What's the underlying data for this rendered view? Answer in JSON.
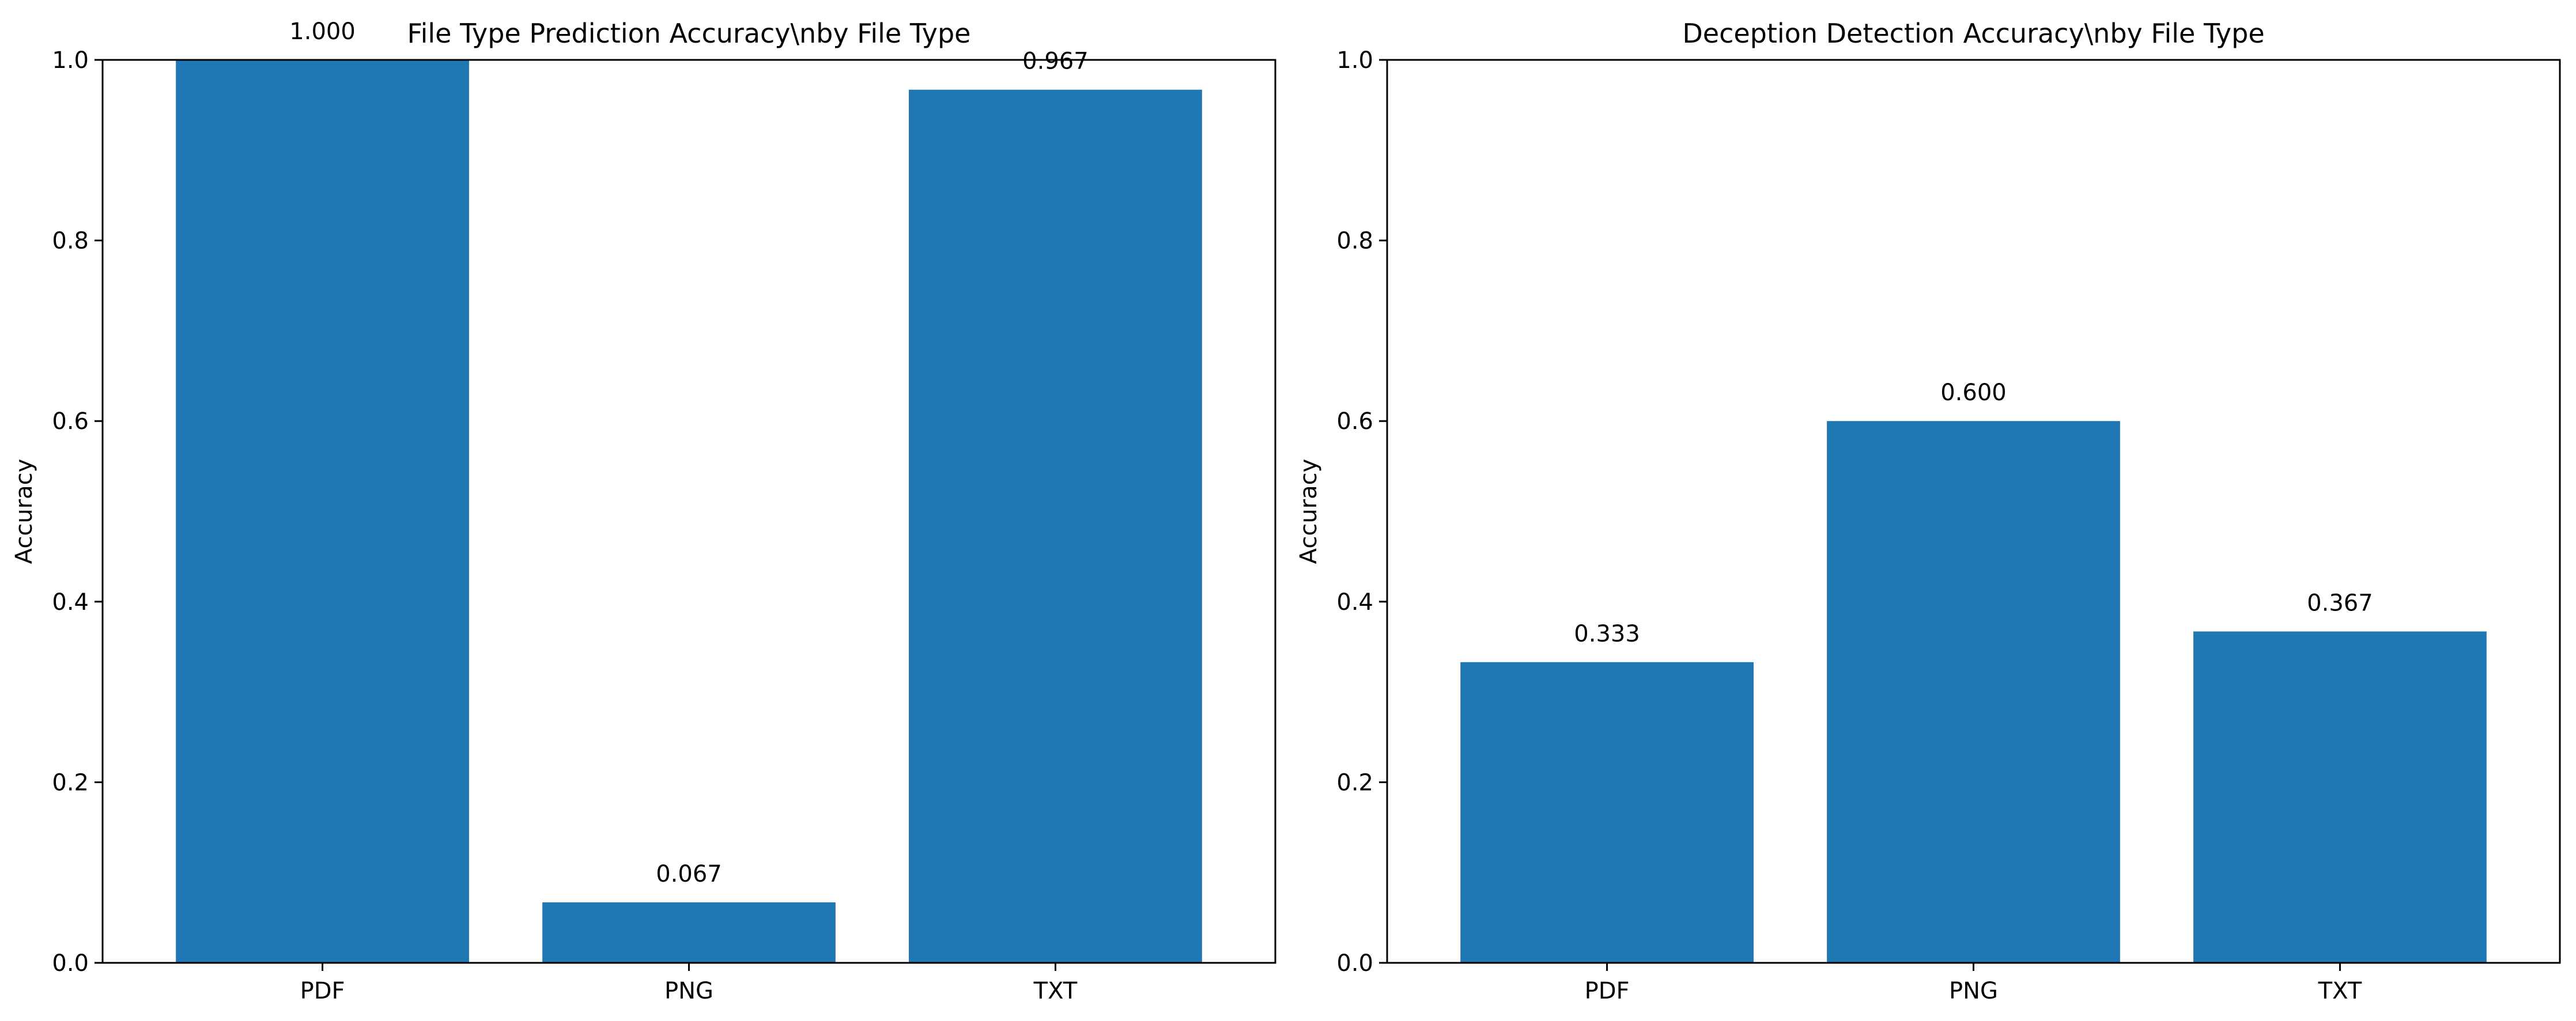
{
  "chart_data": [
    {
      "type": "bar",
      "title": "File Type Prediction Accuracy\\nby File Type",
      "xlabel": "",
      "ylabel": "Accuracy",
      "categories": [
        "PDF",
        "PNG",
        "TXT"
      ],
      "values": [
        1.0,
        0.067,
        0.967
      ],
      "data_labels": [
        "1.000",
        "0.067",
        "0.967"
      ],
      "ylim": [
        0,
        1.0
      ],
      "yticks": [
        0.0,
        0.2,
        0.4,
        0.6,
        0.8,
        1.0
      ],
      "ytick_labels": [
        "0.0",
        "0.2",
        "0.4",
        "0.6",
        "0.8",
        "1.0"
      ],
      "bar_color": "#1f77b4",
      "grid": false,
      "legend": "none"
    },
    {
      "type": "bar",
      "title": "Deception Detection Accuracy\\nby File Type",
      "xlabel": "",
      "ylabel": "Accuracy",
      "categories": [
        "PDF",
        "PNG",
        "TXT"
      ],
      "values": [
        0.333,
        0.6,
        0.367
      ],
      "data_labels": [
        "0.333",
        "0.600",
        "0.367"
      ],
      "ylim": [
        0,
        1.0
      ],
      "yticks": [
        0.0,
        0.2,
        0.4,
        0.6,
        0.8,
        1.0
      ],
      "ytick_labels": [
        "0.0",
        "0.2",
        "0.4",
        "0.6",
        "0.8",
        "1.0"
      ],
      "bar_color": "#1f77b4",
      "grid": false,
      "legend": "none"
    }
  ]
}
